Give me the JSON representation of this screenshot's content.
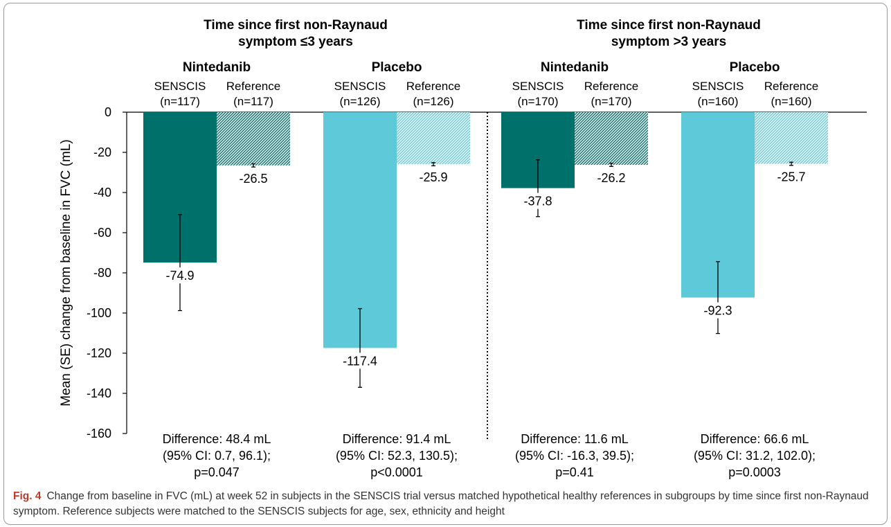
{
  "figure": {
    "caption_label": "Fig. 4",
    "caption_text": "Change from baseline in FVC (mL) at week 52 in subjects in the SENSCIS trial versus matched hypothetical healthy references in subgroups by time since first non-Raynaud symptom. Reference subjects were matched to the SENSCIS subjects for age, sex, ethnicity and height"
  },
  "colors": {
    "nintedanib": "#00706a",
    "placebo": "#5ec9d8",
    "nintedanib_reference_hatch": "#00706a",
    "placebo_reference_hatch": "#5ec9d8"
  },
  "chart_data": {
    "type": "bar",
    "ylabel": "Mean (SE) change from baseline in FVC (mL)",
    "ylim": [
      -160,
      0
    ],
    "yticks": [
      0,
      -20,
      -40,
      -60,
      -80,
      -100,
      -120,
      -140,
      -160
    ],
    "grid": false,
    "panels": [
      {
        "title_line1": "Time since first non-Raynaud",
        "title_line2": "symptom ≤3 years",
        "groups": [
          {
            "name": "Nintedanib",
            "difference_lines": [
              "Difference: 48.4 mL",
              "(95% CI: 0.7, 96.1);",
              "p=0.047"
            ],
            "bars": [
              {
                "label": "SENSCIS",
                "n": "(n=117)",
                "value": -74.9,
                "value_label": "-74.9",
                "se_low": -98.8,
                "se_high": -51.0,
                "style": "solid",
                "color": "#00706a"
              },
              {
                "label": "Reference",
                "n": "(n=117)",
                "value": -26.5,
                "value_label": "-26.5",
                "se_low": -27.3,
                "se_high": -25.7,
                "style": "hatched",
                "color": "#00706a"
              }
            ]
          },
          {
            "name": "Placebo",
            "difference_lines": [
              "Difference: 91.4 mL",
              "(95% CI: 52.3, 130.5);",
              "p<0.0001"
            ],
            "bars": [
              {
                "label": "SENSCIS",
                "n": "(n=126)",
                "value": -117.4,
                "value_label": "-117.4",
                "se_low": -137.0,
                "se_high": -97.8,
                "style": "solid",
                "color": "#5ec9d8"
              },
              {
                "label": "Reference",
                "n": "(n=126)",
                "value": -25.9,
                "value_label": "-25.9",
                "se_low": -26.7,
                "se_high": -25.1,
                "style": "hatched",
                "color": "#5ec9d8"
              }
            ]
          }
        ]
      },
      {
        "title_line1": "Time since first non-Raynaud",
        "title_line2": "symptom >3 years",
        "groups": [
          {
            "name": "Nintedanib",
            "difference_lines": [
              "Difference: 11.6 mL",
              "(95% CI: -16.3, 39.5);",
              "p=0.41"
            ],
            "bars": [
              {
                "label": "SENSCIS",
                "n": "(n=170)",
                "value": -37.8,
                "value_label": "-37.8",
                "se_low": -52.0,
                "se_high": -23.7,
                "style": "solid",
                "color": "#00706a"
              },
              {
                "label": "Reference",
                "n": "(n=170)",
                "value": -26.2,
                "value_label": "-26.2",
                "se_low": -27.0,
                "se_high": -25.4,
                "style": "hatched",
                "color": "#00706a"
              }
            ]
          },
          {
            "name": "Placebo",
            "difference_lines": [
              "Difference: 66.6 mL",
              "(95% CI: 31.2, 102.0);",
              "p=0.0003"
            ],
            "bars": [
              {
                "label": "SENSCIS",
                "n": "(n=160)",
                "value": -92.3,
                "value_label": "-92.3",
                "se_low": -110.2,
                "se_high": -74.4,
                "style": "solid",
                "color": "#5ec9d8"
              },
              {
                "label": "Reference",
                "n": "(n=160)",
                "value": -25.7,
                "value_label": "-25.7",
                "se_low": -26.5,
                "se_high": -24.9,
                "style": "hatched",
                "color": "#5ec9d8"
              }
            ]
          }
        ]
      }
    ]
  }
}
